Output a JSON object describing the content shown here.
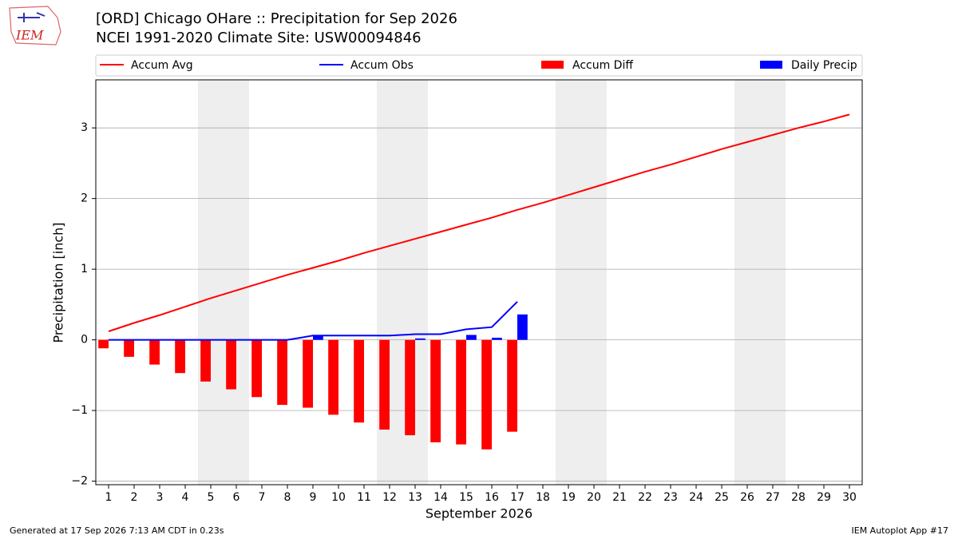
{
  "chart_data": {
    "type": "combo",
    "title": "[ORD] Chicago OHare :: Precipitation for Sep 2026",
    "subtitle": "NCEI 1991-2020 Climate Site: USW00094846",
    "logo": "IEM",
    "xlabel": "September 2026",
    "ylabel": "Precipitation [inch]",
    "footer_left": "Generated at 17 Sep 2026 7:13 AM CDT in 0.23s",
    "footer_right": "IEM Autoplot App #17",
    "x": [
      1,
      2,
      3,
      4,
      5,
      6,
      7,
      8,
      9,
      10,
      11,
      12,
      13,
      14,
      15,
      16,
      17,
      18,
      19,
      20,
      21,
      22,
      23,
      24,
      25,
      26,
      27,
      28,
      29,
      30
    ],
    "xlim": [
      0.5,
      30.5
    ],
    "xticks": [
      1,
      2,
      3,
      4,
      5,
      6,
      7,
      8,
      9,
      10,
      11,
      12,
      13,
      14,
      15,
      16,
      17,
      18,
      19,
      20,
      21,
      22,
      23,
      24,
      25,
      26,
      27,
      28,
      29,
      30
    ],
    "ylim": [
      -2.05,
      3.68
    ],
    "yticks": [
      -2,
      -1,
      0,
      1,
      2,
      3
    ],
    "grid": true,
    "shade_spans": [
      [
        4.5,
        6.5
      ],
      [
        11.5,
        13.5
      ],
      [
        18.5,
        20.5
      ],
      [
        25.5,
        27.5
      ]
    ],
    "series": [
      {
        "name": "Accum Avg",
        "type": "line",
        "color": "#ff0000",
        "values": [
          0.12,
          0.24,
          0.35,
          0.47,
          0.59,
          0.7,
          0.81,
          0.92,
          1.02,
          1.12,
          1.23,
          1.33,
          1.43,
          1.53,
          1.63,
          1.73,
          1.84,
          1.94,
          2.05,
          2.16,
          2.27,
          2.38,
          2.48,
          2.59,
          2.7,
          2.8,
          2.9,
          3.0,
          3.09,
          3.19
        ]
      },
      {
        "name": "Accum Obs",
        "type": "line",
        "color": "#0000ff",
        "values": [
          0,
          0,
          0,
          0,
          0,
          0,
          0,
          0,
          0.06,
          0.06,
          0.06,
          0.06,
          0.08,
          0.08,
          0.15,
          0.18,
          0.54,
          null,
          null,
          null,
          null,
          null,
          null,
          null,
          null,
          null,
          null,
          null,
          null,
          null
        ]
      },
      {
        "name": "Accum Diff",
        "type": "bar",
        "color": "#ff0000",
        "values": [
          -0.12,
          -0.24,
          -0.35,
          -0.47,
          -0.59,
          -0.7,
          -0.81,
          -0.92,
          -0.96,
          -1.06,
          -1.17,
          -1.27,
          -1.35,
          -1.45,
          -1.48,
          -1.55,
          -1.3,
          null,
          null,
          null,
          null,
          null,
          null,
          null,
          null,
          null,
          null,
          null,
          null,
          null
        ]
      },
      {
        "name": "Daily Precip",
        "type": "bar",
        "color": "#0000ff",
        "values": [
          0,
          0,
          0,
          0,
          0,
          0,
          0,
          0,
          0.06,
          0,
          0,
          0,
          0.02,
          0,
          0.07,
          0.03,
          0.36,
          null,
          null,
          null,
          null,
          null,
          null,
          null,
          null,
          null,
          null,
          null,
          null,
          null
        ]
      }
    ]
  }
}
